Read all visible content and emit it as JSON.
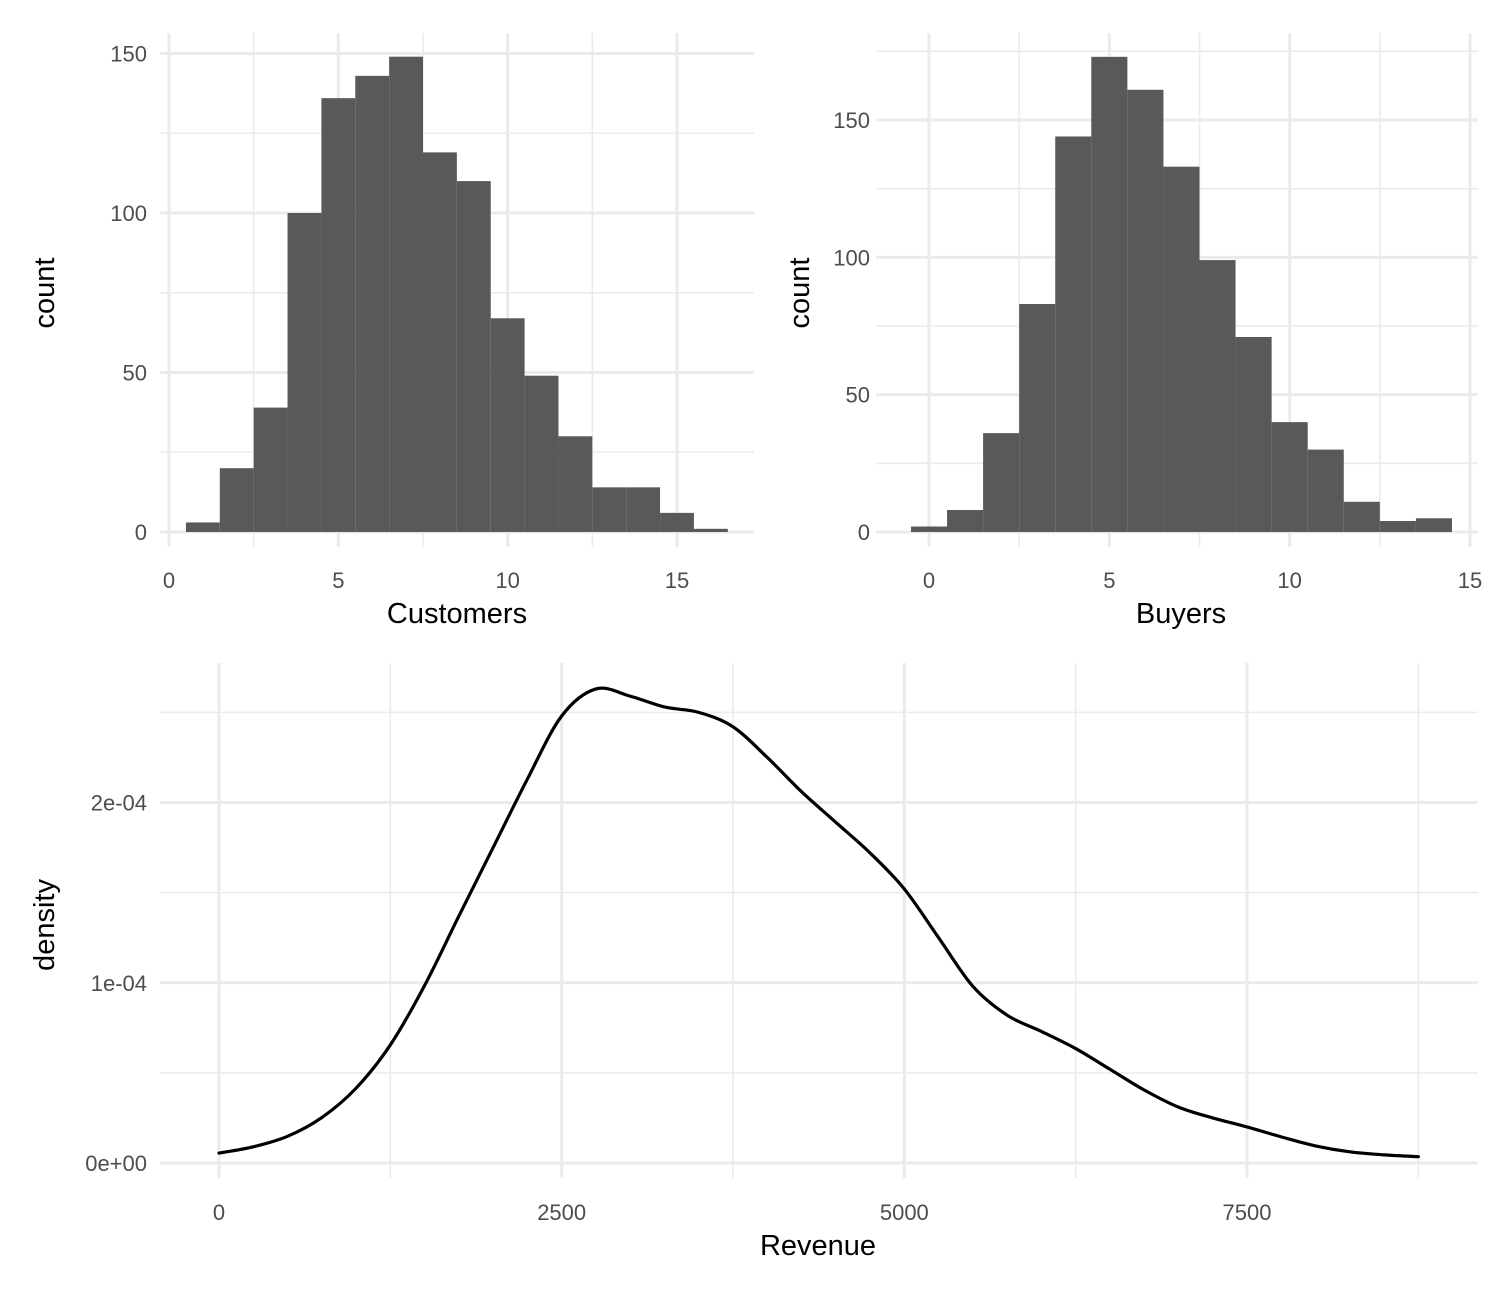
{
  "chart_data": [
    {
      "type": "bar",
      "subtype": "histogram",
      "xlabel": "Customers",
      "ylabel": "count",
      "xlim": [
        0,
        17
      ],
      "ylim": [
        0,
        150
      ],
      "xticks": [
        0,
        5,
        10,
        15
      ],
      "yticks": [
        0,
        50,
        100,
        150
      ],
      "grid": true,
      "bin_width": 1,
      "bin_centers": [
        1,
        2,
        3,
        4,
        5,
        6,
        7,
        8,
        9,
        10,
        11,
        12,
        13,
        14,
        15,
        16
      ],
      "counts": [
        3,
        20,
        39,
        100,
        136,
        143,
        149,
        119,
        110,
        67,
        49,
        30,
        14,
        14,
        6,
        1
      ],
      "color": "#595959"
    },
    {
      "type": "bar",
      "subtype": "histogram",
      "xlabel": "Buyers",
      "ylabel": "count",
      "xlim": [
        -1,
        15
      ],
      "ylim": [
        0,
        175
      ],
      "xticks": [
        0,
        5,
        10,
        15
      ],
      "yticks": [
        0,
        50,
        100,
        150
      ],
      "grid": true,
      "bin_width": 1,
      "bin_centers": [
        0,
        1,
        2,
        3,
        4,
        5,
        6,
        7,
        8,
        9,
        10,
        11,
        12,
        13,
        14
      ],
      "counts": [
        2,
        8,
        36,
        83,
        144,
        173,
        161,
        133,
        99,
        71,
        40,
        30,
        11,
        4,
        5
      ],
      "color": "#595959"
    },
    {
      "type": "line",
      "subtype": "density",
      "xlabel": "Revenue",
      "ylabel": "density",
      "xlim": [
        0,
        8750
      ],
      "ylim": [
        0,
        0.00026
      ],
      "xticks": [
        0,
        2500,
        5000,
        7500
      ],
      "xtick_labels": [
        "0",
        "2500",
        "5000",
        "7500"
      ],
      "yticks": [
        0,
        0.0001,
        0.0002
      ],
      "ytick_labels": [
        "0e+00",
        "1e-04",
        "2e-04"
      ],
      "grid": true,
      "x": [
        0,
        250,
        500,
        750,
        1000,
        1250,
        1500,
        1750,
        2000,
        2250,
        2500,
        2750,
        3000,
        3250,
        3500,
        3750,
        4000,
        4250,
        4500,
        4750,
        5000,
        5250,
        5500,
        5750,
        6000,
        6250,
        6500,
        6750,
        7000,
        7250,
        7500,
        7750,
        8000,
        8250,
        8500,
        8750
      ],
      "y": [
        5.5e-06,
        9e-06,
        1.48e-05,
        2.52e-05,
        4.15e-05,
        6.55e-05,
        9.85e-05,
        0.000137,
        0.000175,
        0.000213,
        0.000248,
        0.000263,
        0.000259,
        0.000253,
        0.00025,
        0.000242,
        0.000225,
        0.000206,
        0.000189,
        0.000172,
        0.000152,
        0.000125,
        9.8e-05,
        8.2e-05,
        7.3e-05,
        6.35e-05,
        5.2e-05,
        4.05e-05,
        3.1e-05,
        2.5e-05,
        2e-05,
        1.45e-05,
        9.5e-06,
        6.2e-06,
        4.5e-06,
        3.5e-06
      ],
      "color": "#000000"
    }
  ]
}
